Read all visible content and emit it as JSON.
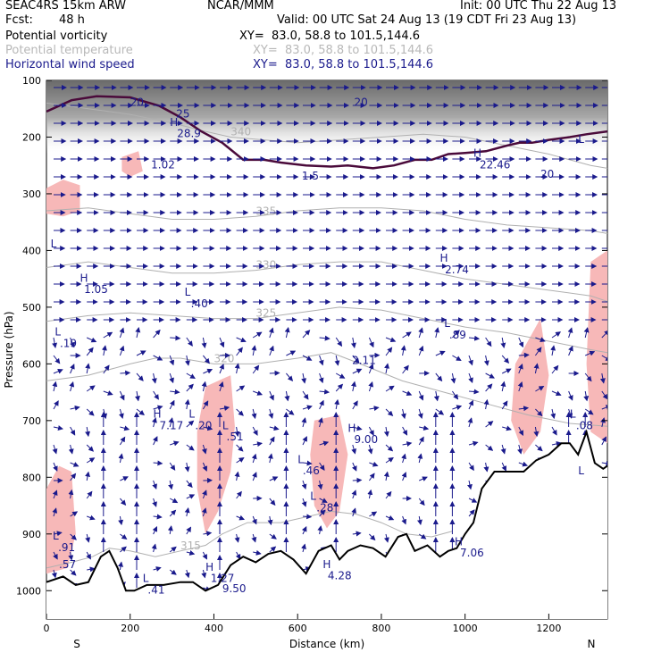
{
  "header": {
    "model": "SEAC4RS 15km ARW",
    "org": "NCAR/MMM",
    "init": "Init: 00 UTC Thu 22 Aug 13",
    "fcst_label": "Fcst:",
    "fcst_value": "48 h",
    "valid": "Valid: 00 UTC Sat 24 Aug 13 (19 CDT Fri 23 Aug 13)"
  },
  "fields": [
    {
      "name": "Potential vorticity",
      "xy": "XY=  83.0, 58.8 to 101.5,144.6",
      "color": "#000000"
    },
    {
      "name": "Potential temperature",
      "xy": "XY=  83.0, 58.8 to 101.5,144.6",
      "color": "#b8b8b8"
    },
    {
      "name": "Horizontal wind speed",
      "xy": "XY=  83.0, 58.8 to 101.5,144.6",
      "color": "#1a1a8c"
    }
  ],
  "colors": {
    "pv_contour": "#4a0a3a",
    "theta_contour": "#b0b0b0",
    "wind": "#1a1a8c",
    "shade_pink": "#f7b8b8",
    "terrain": "#000000"
  },
  "chart_data": {
    "type": "cross-section",
    "xlabel": "Distance (km)",
    "ylabel": "Pressure (hPa)",
    "xlim": [
      0,
      1340
    ],
    "ylim": [
      1050,
      100
    ],
    "x_ticks": [
      "0",
      "200",
      "400",
      "600",
      "800",
      "1000",
      "1200"
    ],
    "y_ticks": [
      "100",
      "200",
      "300",
      "400",
      "500",
      "600",
      "700",
      "800",
      "900",
      "1000"
    ],
    "end_labels": {
      "left": "S",
      "right": "N"
    },
    "terrain": [
      [
        0,
        985
      ],
      [
        40,
        975
      ],
      [
        70,
        990
      ],
      [
        100,
        985
      ],
      [
        130,
        940
      ],
      [
        150,
        930
      ],
      [
        170,
        960
      ],
      [
        190,
        1000
      ],
      [
        210,
        1000
      ],
      [
        240,
        990
      ],
      [
        280,
        990
      ],
      [
        320,
        985
      ],
      [
        350,
        985
      ],
      [
        380,
        1000
      ],
      [
        410,
        990
      ],
      [
        440,
        955
      ],
      [
        470,
        940
      ],
      [
        500,
        950
      ],
      [
        530,
        935
      ],
      [
        560,
        930
      ],
      [
        590,
        945
      ],
      [
        620,
        970
      ],
      [
        650,
        930
      ],
      [
        680,
        920
      ],
      [
        700,
        945
      ],
      [
        720,
        930
      ],
      [
        750,
        920
      ],
      [
        780,
        925
      ],
      [
        810,
        940
      ],
      [
        840,
        905
      ],
      [
        860,
        900
      ],
      [
        880,
        930
      ],
      [
        910,
        920
      ],
      [
        940,
        940
      ],
      [
        960,
        930
      ],
      [
        980,
        925
      ],
      [
        1000,
        900
      ],
      [
        1020,
        880
      ],
      [
        1040,
        820
      ],
      [
        1070,
        790
      ],
      [
        1100,
        790
      ],
      [
        1140,
        790
      ],
      [
        1170,
        770
      ],
      [
        1200,
        760
      ],
      [
        1230,
        740
      ],
      [
        1250,
        740
      ],
      [
        1270,
        760
      ],
      [
        1290,
        720
      ],
      [
        1310,
        775
      ],
      [
        1330,
        785
      ],
      [
        1340,
        780
      ]
    ],
    "pressure_contours": [
      {
        "label": "340",
        "points": [
          [
            0,
            140
          ],
          [
            100,
            150
          ],
          [
            200,
            160
          ],
          [
            300,
            175
          ],
          [
            380,
            190
          ],
          [
            440,
            200
          ],
          [
            520,
            205
          ],
          [
            600,
            210
          ],
          [
            700,
            205
          ],
          [
            800,
            200
          ],
          [
            900,
            195
          ],
          [
            1000,
            200
          ],
          [
            1100,
            215
          ],
          [
            1200,
            230
          ],
          [
            1300,
            250
          ],
          [
            1340,
            255
          ]
        ]
      },
      {
        "label": "335",
        "points": [
          [
            0,
            330
          ],
          [
            100,
            325
          ],
          [
            200,
            335
          ],
          [
            300,
            345
          ],
          [
            400,
            345
          ],
          [
            500,
            340
          ],
          [
            600,
            330
          ],
          [
            700,
            325
          ],
          [
            800,
            325
          ],
          [
            900,
            330
          ],
          [
            1000,
            345
          ],
          [
            1100,
            355
          ],
          [
            1200,
            360
          ],
          [
            1300,
            365
          ],
          [
            1340,
            370
          ]
        ]
      },
      {
        "label": "330",
        "points": [
          [
            0,
            430
          ],
          [
            100,
            420
          ],
          [
            200,
            430
          ],
          [
            300,
            440
          ],
          [
            400,
            440
          ],
          [
            500,
            435
          ],
          [
            600,
            425
          ],
          [
            700,
            420
          ],
          [
            800,
            420
          ],
          [
            900,
            435
          ],
          [
            1000,
            450
          ],
          [
            1100,
            460
          ],
          [
            1200,
            470
          ],
          [
            1300,
            480
          ],
          [
            1340,
            490
          ]
        ]
      },
      {
        "label": "325",
        "points": [
          [
            0,
            525
          ],
          [
            100,
            515
          ],
          [
            200,
            510
          ],
          [
            300,
            515
          ],
          [
            400,
            520
          ],
          [
            500,
            520
          ],
          [
            600,
            510
          ],
          [
            700,
            500
          ],
          [
            800,
            505
          ],
          [
            900,
            520
          ],
          [
            1000,
            535
          ],
          [
            1100,
            545
          ],
          [
            1200,
            560
          ],
          [
            1300,
            575
          ],
          [
            1340,
            580
          ]
        ]
      },
      {
        "label": "320",
        "points": [
          [
            0,
            630
          ],
          [
            100,
            620
          ],
          [
            200,
            600
          ],
          [
            260,
            590
          ],
          [
            320,
            590
          ],
          [
            400,
            600
          ],
          [
            500,
            600
          ],
          [
            600,
            590
          ],
          [
            680,
            580
          ],
          [
            750,
            600
          ],
          [
            850,
            630
          ],
          [
            950,
            650
          ],
          [
            1050,
            670
          ],
          [
            1150,
            690
          ],
          [
            1250,
            705
          ],
          [
            1340,
            710
          ]
        ]
      },
      {
        "label": "315",
        "points": [
          [
            0,
            960
          ],
          [
            60,
            950
          ],
          [
            110,
            940
          ],
          [
            150,
            925
          ],
          [
            200,
            930
          ],
          [
            260,
            940
          ],
          [
            320,
            930
          ],
          [
            380,
            920
          ],
          [
            420,
            900
          ],
          [
            480,
            880
          ],
          [
            560,
            880
          ],
          [
            620,
            870
          ],
          [
            680,
            860
          ],
          [
            740,
            865
          ],
          [
            800,
            880
          ],
          [
            860,
            900
          ],
          [
            920,
            905
          ],
          [
            970,
            895
          ]
        ]
      }
    ],
    "pv_contour_2": [
      [
        0,
        155
      ],
      [
        60,
        135
      ],
      [
        120,
        128
      ],
      [
        200,
        130
      ],
      [
        270,
        145
      ],
      [
        320,
        165
      ],
      [
        370,
        190
      ],
      [
        420,
        210
      ],
      [
        470,
        240
      ],
      [
        520,
        240
      ],
      [
        560,
        245
      ],
      [
        620,
        250
      ],
      [
        680,
        252
      ],
      [
        720,
        250
      ],
      [
        780,
        255
      ],
      [
        830,
        250
      ],
      [
        880,
        240
      ],
      [
        920,
        240
      ],
      [
        960,
        230
      ],
      [
        1000,
        228
      ],
      [
        1050,
        225
      ],
      [
        1100,
        215
      ],
      [
        1130,
        210
      ],
      [
        1160,
        210
      ],
      [
        1200,
        205
      ],
      [
        1250,
        200
      ],
      [
        1290,
        195
      ],
      [
        1340,
        190
      ]
    ],
    "shaded_regions": [
      [
        [
          0,
          290
        ],
        [
          40,
          275
        ],
        [
          80,
          285
        ],
        [
          80,
          330
        ],
        [
          40,
          340
        ],
        [
          0,
          335
        ]
      ],
      [
        [
          180,
          235
        ],
        [
          220,
          225
        ],
        [
          230,
          260
        ],
        [
          200,
          270
        ],
        [
          180,
          260
        ]
      ],
      [
        [
          380,
          640
        ],
        [
          440,
          620
        ],
        [
          450,
          710
        ],
        [
          440,
          790
        ],
        [
          410,
          860
        ],
        [
          380,
          900
        ],
        [
          360,
          820
        ],
        [
          360,
          720
        ]
      ],
      [
        [
          0,
          820
        ],
        [
          30,
          780
        ],
        [
          60,
          790
        ],
        [
          70,
          900
        ],
        [
          50,
          960
        ],
        [
          0,
          970
        ]
      ],
      [
        [
          640,
          700
        ],
        [
          700,
          690
        ],
        [
          720,
          760
        ],
        [
          700,
          860
        ],
        [
          670,
          890
        ],
        [
          640,
          850
        ],
        [
          630,
          760
        ]
      ],
      [
        [
          1120,
          600
        ],
        [
          1180,
          520
        ],
        [
          1200,
          620
        ],
        [
          1180,
          720
        ],
        [
          1140,
          760
        ],
        [
          1110,
          700
        ]
      ],
      [
        [
          1300,
          420
        ],
        [
          1340,
          400
        ],
        [
          1340,
          740
        ],
        [
          1300,
          720
        ],
        [
          1290,
          600
        ]
      ]
    ],
    "annotations": [
      {
        "text": "H",
        "x": 80,
        "y": 455
      },
      {
        "text": "1.05",
        "x": 90,
        "y": 475
      },
      {
        "text": "L",
        "x": 330,
        "y": 480
      },
      {
        "text": ".40",
        "x": 345,
        "y": 500
      },
      {
        "text": "L",
        "x": 20,
        "y": 550
      },
      {
        "text": ".19",
        "x": 32,
        "y": 570
      },
      {
        "text": "H",
        "x": 295,
        "y": 180
      },
      {
        "text": "28.9",
        "x": 312,
        "y": 200
      },
      {
        "text": "H",
        "x": 255,
        "y": 695
      },
      {
        "text": "7.17",
        "x": 270,
        "y": 715
      },
      {
        "text": "L",
        "x": 340,
        "y": 695
      },
      {
        "text": ".20",
        "x": 355,
        "y": 715
      },
      {
        "text": "L",
        "x": 420,
        "y": 715
      },
      {
        "text": ".51",
        "x": 430,
        "y": 735
      },
      {
        "text": "L",
        "x": 600,
        "y": 775
      },
      {
        "text": ".46",
        "x": 612,
        "y": 795
      },
      {
        "text": "L",
        "x": 630,
        "y": 840
      },
      {
        "text": ".28",
        "x": 645,
        "y": 860
      },
      {
        "text": "H",
        "x": 720,
        "y": 720
      },
      {
        "text": "9.00",
        "x": 735,
        "y": 740
      },
      {
        "text": "2.11",
        "x": 730,
        "y": 600
      },
      {
        "text": "H",
        "x": 940,
        "y": 420
      },
      {
        "text": "2.74",
        "x": 952,
        "y": 440
      },
      {
        "text": "L",
        "x": 950,
        "y": 535
      },
      {
        "text": ".89",
        "x": 962,
        "y": 555
      },
      {
        "text": "H",
        "x": 1020,
        "y": 235
      },
      {
        "text": "22.46",
        "x": 1035,
        "y": 255
      },
      {
        "text": "H",
        "x": 380,
        "y": 965
      },
      {
        "text": "1.27",
        "x": 392,
        "y": 985
      },
      {
        "text": "9.50",
        "x": 420,
        "y": 1003
      },
      {
        "text": "L",
        "x": 230,
        "y": 985
      },
      {
        "text": ".41",
        "x": 242,
        "y": 1005
      },
      {
        "text": "H",
        "x": 660,
        "y": 960
      },
      {
        "text": "4.28",
        "x": 672,
        "y": 980
      },
      {
        "text": "H",
        "x": 975,
        "y": 920
      },
      {
        "text": "7.06",
        "x": 988,
        "y": 940
      },
      {
        "text": "L",
        "x": 1250,
        "y": 695
      },
      {
        "text": ".08",
        "x": 1265,
        "y": 715
      },
      {
        "text": "L",
        "x": 15,
        "y": 910
      },
      {
        "text": ".91",
        "x": 28,
        "y": 930
      },
      {
        "text": ".57",
        "x": 30,
        "y": 960
      },
      {
        "text": "L",
        "x": 1270,
        "y": 795
      },
      {
        "text": "L",
        "x": 10,
        "y": 395
      },
      {
        "text": "20",
        "x": 200,
        "y": 145
      },
      {
        "text": "20",
        "x": 735,
        "y": 145
      },
      {
        "text": "20",
        "x": 1180,
        "y": 272
      },
      {
        "text": "25",
        "x": 310,
        "y": 165
      },
      {
        "text": "1.5",
        "x": 610,
        "y": 275
      },
      {
        "text": "L",
        "x": 1270,
        "y": 210
      },
      {
        "text": "1.02",
        "x": 250,
        "y": 255
      }
    ]
  }
}
